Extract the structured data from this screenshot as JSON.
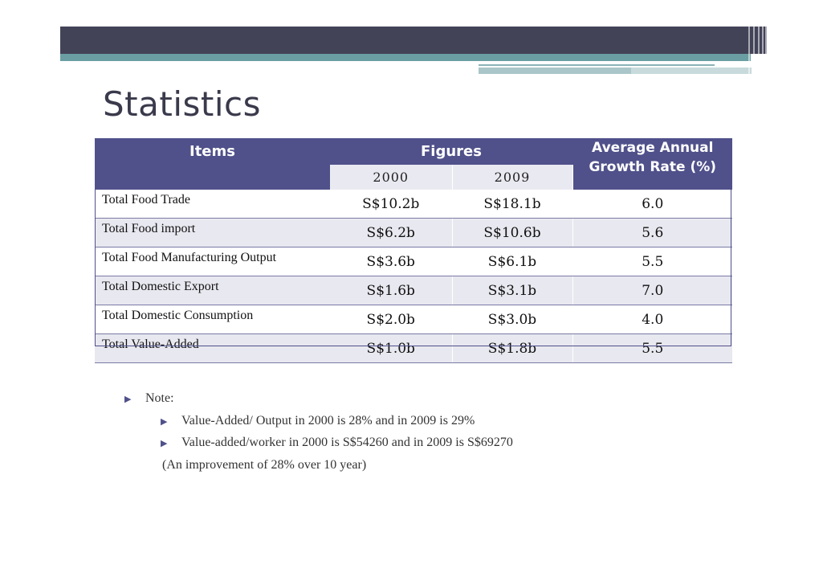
{
  "slide": {
    "title": "Statistics"
  },
  "table": {
    "headers": {
      "items": "Items",
      "figures": "Figures",
      "growth": "Average Annual Growth Rate (%)",
      "years": [
        "2000",
        "2009"
      ]
    },
    "rows": [
      {
        "item": "Total Food Trade",
        "y2000": "S$10.2b",
        "y2009": "S$18.1b",
        "rate": "6.0"
      },
      {
        "item": "Total Food import",
        "y2000": "S$6.2b",
        "y2009": "S$10.6b",
        "rate": "5.6"
      },
      {
        "item": "Total Food Manufacturing Output",
        "y2000": "S$3.6b",
        "y2009": "S$6.1b",
        "rate": "5.5"
      },
      {
        "item": "Total Domestic Export",
        "y2000": "S$1.6b",
        "y2009": "S$3.1b",
        "rate": "7.0"
      },
      {
        "item": "Total Domestic Consumption",
        "y2000": "S$2.0b",
        "y2009": "S$3.0b",
        "rate": "4.0"
      },
      {
        "item": "Total Value-Added",
        "y2000": "S$1.0b",
        "y2009": "S$1.8b",
        "rate": "5.5"
      }
    ]
  },
  "notes": {
    "label": "Note:",
    "items": [
      "Value-Added/ Output in 2000 is 28% and in 2009 is 29%",
      "Value-added/worker in 2000 is S$54260 and in 2009 is S$69270"
    ],
    "extra": "(An improvement of 28% over 10 year)"
  },
  "icons": {
    "bullet": "triangle-right-icon"
  },
  "colors": {
    "header": "#50518a",
    "band": "#434358",
    "teal": "#6a9ea3"
  }
}
